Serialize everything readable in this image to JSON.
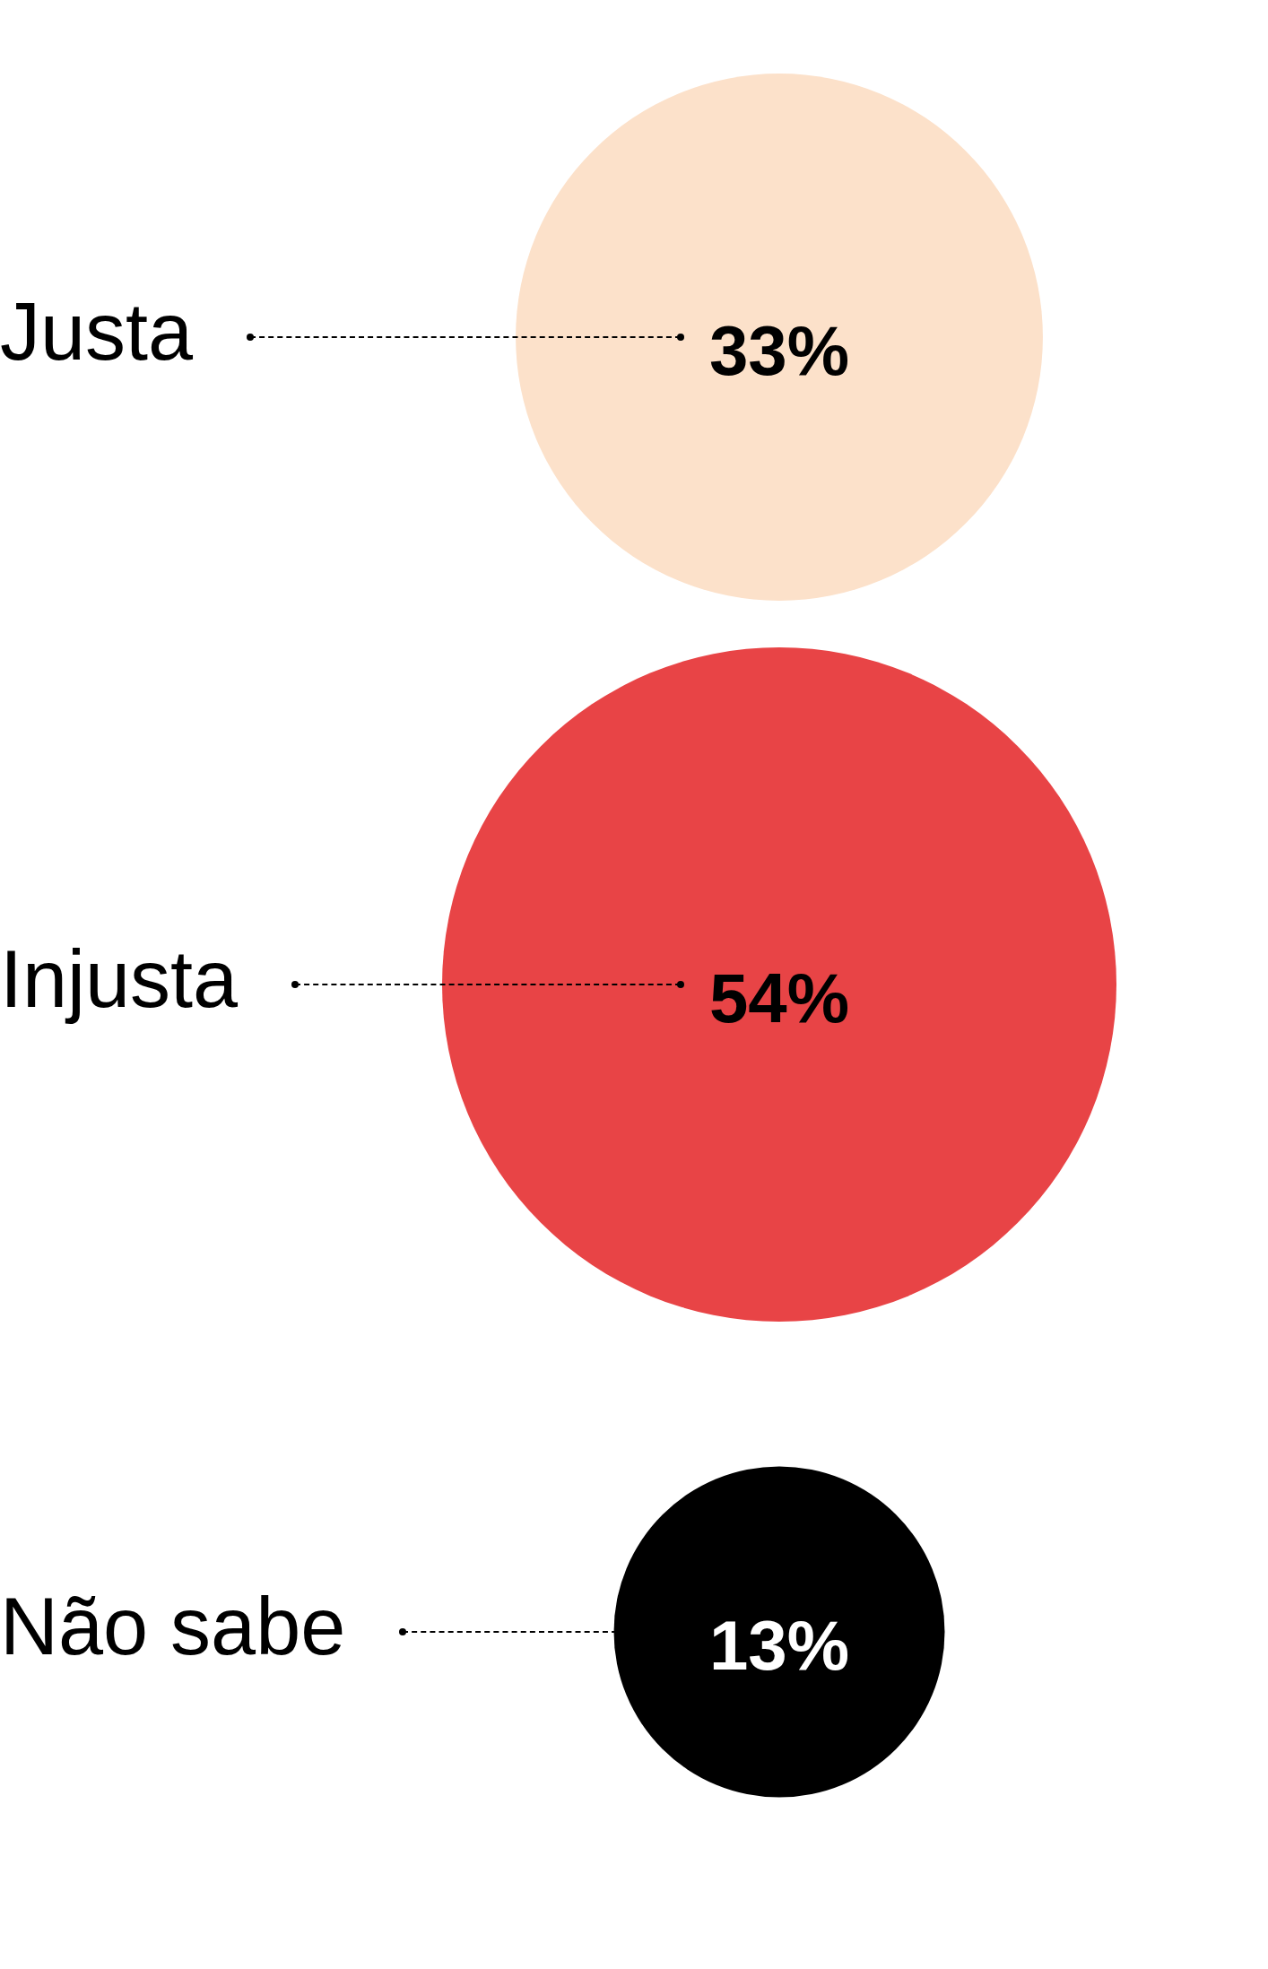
{
  "chart_data": {
    "type": "other",
    "categories": [
      "Justa",
      "Injusta",
      "Não sabe"
    ],
    "values": [
      33,
      54,
      13
    ],
    "colors": [
      "#fce1ca",
      "#e84446",
      "#000000"
    ],
    "value_labels": [
      "33%",
      "54%",
      "13%"
    ]
  }
}
